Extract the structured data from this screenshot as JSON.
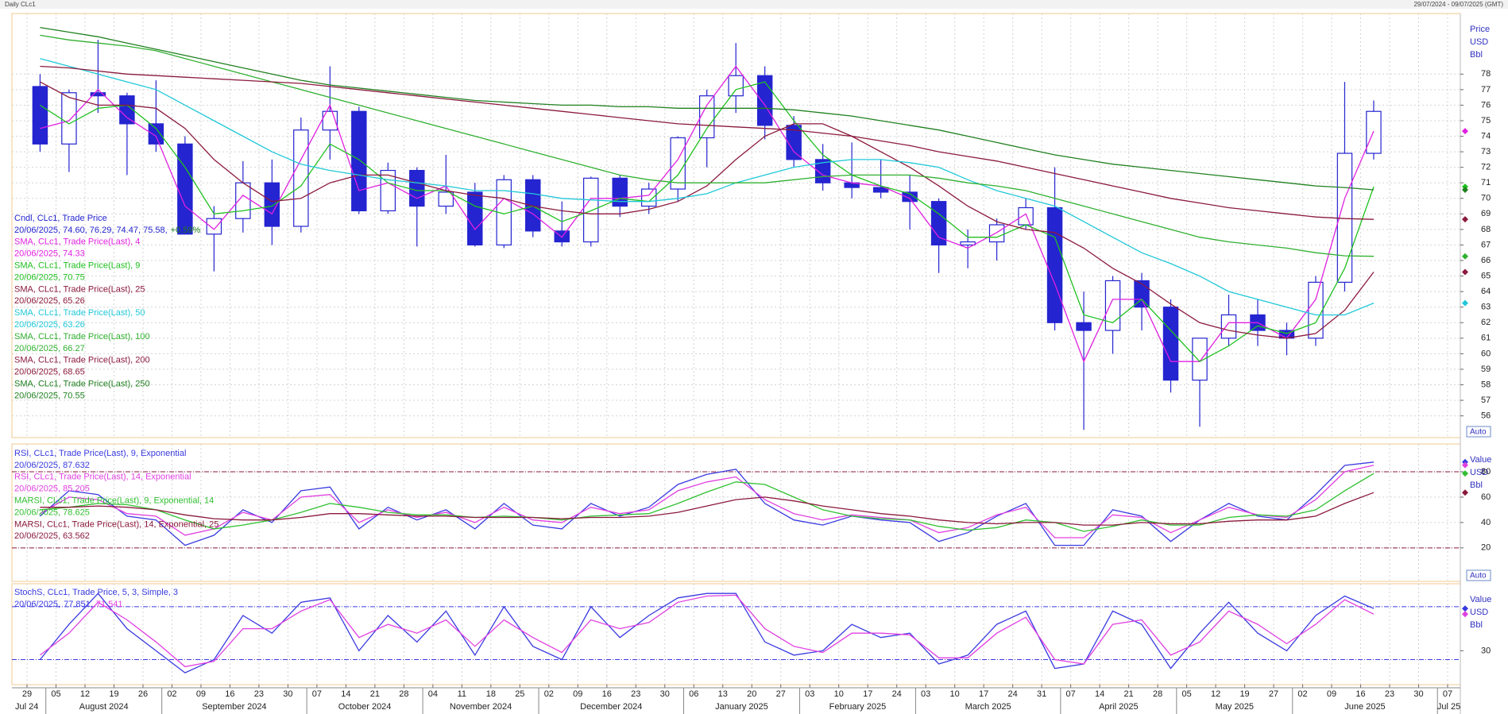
{
  "header": {
    "title": "Daily CLc1",
    "range": "29/07/2024 - 09/07/2025 (GMT)"
  },
  "x_axis": {
    "categories": [
      "29",
      "05",
      "12",
      "19",
      "26",
      "02",
      "09",
      "16",
      "23",
      "30",
      "07",
      "14",
      "21",
      "28",
      "04",
      "11",
      "18",
      "25",
      "02",
      "09",
      "16",
      "23",
      "30",
      "06",
      "13",
      "20",
      "27",
      "03",
      "10",
      "17",
      "24",
      "03",
      "10",
      "17",
      "24",
      "31",
      "07",
      "14",
      "21",
      "28",
      "05",
      "12",
      "19",
      "27",
      "02",
      "09",
      "16",
      "23",
      "30",
      "07"
    ],
    "months": [
      "Jul 24",
      "August 2024",
      "September 2024",
      "October 2024",
      "November 2024",
      "December 2024",
      "January 2025",
      "February 2025",
      "March 2025",
      "April 2025",
      "May 2025",
      "June 2025",
      "Jul 25"
    ]
  },
  "chart_data": [
    {
      "type": "candlestick",
      "units": [
        "Price",
        "USD",
        "Bbl"
      ],
      "scale_mode": "Auto",
      "grid": true,
      "ylim": [
        54.6,
        81.9
      ],
      "yticks": [
        56,
        57,
        58,
        59,
        60,
        61,
        62,
        63,
        64,
        65,
        66,
        67,
        68,
        69,
        70,
        71,
        72,
        73,
        74,
        75,
        76,
        77,
        78
      ],
      "candles": {
        "name": "Cndl, CLc1, Trade Price",
        "legend_value": "20/06/2025, 74.60, 76.29, 74.47, 75.58,",
        "change": "+0.59%",
        "color": "#2424d0",
        "open": [
          77.2,
          73.5,
          76.8,
          76.6,
          74.8,
          73.5,
          67.7,
          68.7,
          71.0,
          68.2,
          74.4,
          75.6,
          69.2,
          71.8,
          69.5,
          70.4,
          67.0,
          71.2,
          67.9,
          67.2,
          71.3,
          69.5,
          70.6,
          73.9,
          76.6,
          77.9,
          74.7,
          72.5,
          71.0,
          70.7,
          70.4,
          69.8,
          67.0,
          67.2,
          68.3,
          69.4,
          62.0,
          61.5,
          64.7,
          63.0,
          58.3,
          61.0,
          62.5,
          61.5,
          61.0,
          64.6,
          72.9,
          null,
          null,
          null
        ],
        "high": [
          78.0,
          77.0,
          80.2,
          76.8,
          77.6,
          74.0,
          69.5,
          72.4,
          72.5,
          75.2,
          78.5,
          75.9,
          72.3,
          72.0,
          72.8,
          71.0,
          71.5,
          71.5,
          69.8,
          71.4,
          71.5,
          71.0,
          74.0,
          77.0,
          80.0,
          78.5,
          75.3,
          73.5,
          73.6,
          72.5,
          71.5,
          70.0,
          68.0,
          68.7,
          70.0,
          72.0,
          64.0,
          65.0,
          65.2,
          63.5,
          61.0,
          63.8,
          63.5,
          62.0,
          65.0,
          77.5,
          76.3,
          null,
          null,
          null
        ],
        "low": [
          73.0,
          71.7,
          75.5,
          71.5,
          73.0,
          67.7,
          65.3,
          67.8,
          67.0,
          67.8,
          72.5,
          69.0,
          69.0,
          66.9,
          69.0,
          66.9,
          66.8,
          67.5,
          66.9,
          66.9,
          68.8,
          69.0,
          69.8,
          72.0,
          75.5,
          73.8,
          72.0,
          70.5,
          70.0,
          70.0,
          68.0,
          65.2,
          65.5,
          66.0,
          68.0,
          61.5,
          55.1,
          60.0,
          61.5,
          57.5,
          55.3,
          60.5,
          60.5,
          59.9,
          60.5,
          64.0,
          72.5,
          null,
          null,
          null
        ],
        "close": [
          73.5,
          76.8,
          76.6,
          74.8,
          73.5,
          67.7,
          68.7,
          71.0,
          68.2,
          74.4,
          75.6,
          69.2,
          71.8,
          69.5,
          70.4,
          67.0,
          71.2,
          67.9,
          67.2,
          71.3,
          69.5,
          70.6,
          73.9,
          76.6,
          77.9,
          74.7,
          72.5,
          71.0,
          70.7,
          70.4,
          69.8,
          67.0,
          67.2,
          68.3,
          69.4,
          62.0,
          61.5,
          64.7,
          63.0,
          58.3,
          61.0,
          62.5,
          61.5,
          61.0,
          64.6,
          72.9,
          75.6,
          null,
          null,
          null
        ]
      },
      "series": [
        {
          "name": "SMA, CLc1, Trade Price(Last),  4",
          "legend_value": "20/06/2025, 74.33",
          "color": "#e020e0",
          "values": [
            74.5,
            75.0,
            77.0,
            75.2,
            74.0,
            69.5,
            68.0,
            70.2,
            69.0,
            72.5,
            76.0,
            70.5,
            71.0,
            70.0,
            70.8,
            68.0,
            70.0,
            69.0,
            67.5,
            70.0,
            70.0,
            70.2,
            72.5,
            76.0,
            78.5,
            76.0,
            73.0,
            71.5,
            71.0,
            70.8,
            70.0,
            67.5,
            66.8,
            67.8,
            69.0,
            64.5,
            59.5,
            63.5,
            63.5,
            59.5,
            59.5,
            62.0,
            62.0,
            61.0,
            63.5,
            70.0,
            74.33,
            null,
            null,
            null
          ]
        },
        {
          "name": "SMA, CLc1, Trade Price(Last),  9",
          "legend_value": "20/06/2025, 70.75",
          "color": "#20c020",
          "values": [
            76.0,
            74.8,
            75.8,
            76.0,
            74.5,
            72.0,
            69.0,
            69.2,
            69.5,
            70.8,
            73.5,
            72.5,
            71.0,
            70.5,
            70.5,
            69.5,
            69.0,
            69.5,
            68.5,
            69.2,
            70.0,
            69.8,
            71.5,
            74.5,
            77.0,
            77.5,
            75.0,
            72.8,
            71.5,
            70.8,
            70.3,
            69.0,
            67.5,
            67.5,
            68.3,
            67.5,
            62.5,
            62.0,
            63.5,
            61.5,
            59.5,
            60.5,
            61.8,
            61.3,
            62.0,
            65.5,
            70.75,
            null,
            null,
            null
          ]
        },
        {
          "name": "SMA, CLc1, Trade Price(Last),  25",
          "legend_value": "20/06/2025, 65.26",
          "color": "#8b1a3c",
          "values": [
            77.5,
            76.5,
            76.0,
            76.0,
            75.8,
            74.5,
            72.5,
            71.0,
            69.8,
            70.0,
            71.0,
            71.5,
            71.5,
            71.0,
            70.5,
            70.2,
            70.0,
            69.5,
            69.2,
            69.0,
            69.0,
            69.3,
            69.8,
            70.8,
            72.5,
            74.0,
            74.8,
            74.8,
            74.0,
            73.0,
            72.0,
            70.8,
            69.5,
            68.5,
            68.0,
            67.8,
            66.8,
            65.5,
            64.5,
            63.2,
            62.0,
            61.5,
            61.2,
            61.0,
            61.3,
            62.8,
            65.26,
            null,
            null,
            null
          ]
        },
        {
          "name": "SMA, CLc1, Trade Price(Last),  50",
          "legend_value": "20/06/2025, 63.26",
          "color": "#20c8d8",
          "values": [
            79.0,
            78.5,
            78.0,
            77.5,
            77.0,
            76.0,
            75.0,
            74.0,
            73.0,
            72.2,
            71.8,
            71.5,
            71.2,
            71.0,
            70.8,
            70.5,
            70.5,
            70.3,
            70.0,
            69.9,
            69.8,
            69.8,
            70.0,
            70.3,
            71.0,
            71.5,
            72.0,
            72.3,
            72.5,
            72.5,
            72.3,
            72.0,
            71.2,
            70.5,
            70.0,
            69.5,
            68.5,
            67.5,
            66.5,
            65.8,
            65.0,
            64.0,
            63.5,
            63.0,
            62.5,
            62.5,
            63.26,
            null,
            null,
            null
          ]
        },
        {
          "name": "SMA, CLc1, Trade Price(Last),  100",
          "legend_value": "20/06/2025, 66.27",
          "color": "#30b030",
          "values": [
            80.5,
            80.2,
            80.0,
            79.8,
            79.5,
            79.0,
            78.5,
            78.0,
            77.5,
            77.0,
            76.5,
            76.0,
            75.5,
            75.0,
            74.5,
            74.0,
            73.5,
            73.0,
            72.5,
            72.0,
            71.5,
            71.2,
            71.0,
            71.0,
            71.0,
            71.0,
            71.2,
            71.4,
            71.5,
            71.5,
            71.5,
            71.3,
            71.0,
            70.8,
            70.5,
            70.0,
            69.5,
            69.0,
            68.5,
            68.0,
            67.5,
            67.2,
            67.0,
            66.8,
            66.5,
            66.3,
            66.27,
            null,
            null,
            null
          ]
        },
        {
          "name": "SMA, CLc1, Trade Price(Last),  200",
          "legend_value": "20/06/2025, 68.65",
          "color": "#8b1a3c",
          "values": [
            78.5,
            78.4,
            78.2,
            78.0,
            77.9,
            77.8,
            77.7,
            77.6,
            77.5,
            77.4,
            77.2,
            77.0,
            76.8,
            76.6,
            76.4,
            76.2,
            76.0,
            75.8,
            75.6,
            75.4,
            75.2,
            75.0,
            74.8,
            74.7,
            74.6,
            74.5,
            74.4,
            74.2,
            74.0,
            73.7,
            73.4,
            73.0,
            72.7,
            72.4,
            72.0,
            71.6,
            71.2,
            70.8,
            70.4,
            70.0,
            69.7,
            69.4,
            69.2,
            69.0,
            68.8,
            68.7,
            68.65,
            null,
            null,
            null
          ]
        },
        {
          "name": "SMA, CLc1, Trade Price(Last),  250",
          "legend_value": "20/06/2025, 70.55",
          "color": "#208020",
          "values": [
            81.0,
            80.7,
            80.4,
            80.0,
            79.6,
            79.2,
            78.8,
            78.4,
            78.0,
            77.6,
            77.3,
            77.1,
            76.9,
            76.7,
            76.5,
            76.3,
            76.2,
            76.1,
            76.0,
            76.0,
            75.9,
            75.9,
            75.8,
            75.8,
            75.8,
            75.8,
            75.7,
            75.5,
            75.3,
            75.0,
            74.7,
            74.4,
            74.0,
            73.6,
            73.2,
            72.8,
            72.5,
            72.2,
            72.0,
            71.8,
            71.6,
            71.4,
            71.2,
            71.0,
            70.8,
            70.7,
            70.55,
            null,
            null,
            null
          ]
        }
      ]
    },
    {
      "type": "line",
      "units": [
        "Value",
        "USD",
        "Bbl"
      ],
      "scale_mode": "Auto",
      "grid": true,
      "ylim": [
        -6.4,
        101.9
      ],
      "yticks": [
        20,
        40,
        60,
        80
      ],
      "levels": [
        20,
        80
      ],
      "level_color": "#8b1a3c",
      "series": [
        {
          "name": "RSI, CLc1, Trade Price(Last),  9, Exponential",
          "legend_value": "20/06/2025, 87.632",
          "color": "#3a3ae0",
          "values": [
            45,
            65,
            62,
            45,
            42,
            22,
            30,
            50,
            40,
            65,
            68,
            35,
            52,
            42,
            50,
            35,
            55,
            38,
            35,
            55,
            45,
            52,
            70,
            78,
            82,
            55,
            42,
            38,
            45,
            42,
            40,
            25,
            32,
            45,
            55,
            22,
            22,
            50,
            45,
            25,
            42,
            55,
            45,
            42,
            62,
            85,
            87.632,
            null,
            null,
            null
          ]
        },
        {
          "name": "RSI, CLc1, Trade Price(Last),  14, Exponential",
          "legend_value": "20/06/2025, 85.205",
          "color": "#e040e0",
          "values": [
            47,
            60,
            58,
            47,
            45,
            30,
            35,
            48,
            42,
            60,
            62,
            40,
            50,
            44,
            48,
            40,
            52,
            42,
            40,
            52,
            47,
            50,
            65,
            72,
            76,
            58,
            47,
            42,
            46,
            44,
            42,
            32,
            36,
            46,
            52,
            28,
            28,
            46,
            44,
            32,
            42,
            52,
            46,
            44,
            58,
            80,
            85.205,
            null,
            null,
            null
          ]
        },
        {
          "name": "MARSI, CLc1, Trade Price(Last),  9, Exponential, 14",
          "legend_value": "20/06/2025, 78.625",
          "color": "#30c030",
          "values": [
            50,
            52,
            55,
            54,
            50,
            42,
            35,
            38,
            42,
            48,
            55,
            52,
            48,
            46,
            46,
            44,
            45,
            44,
            42,
            45,
            46,
            47,
            55,
            64,
            72,
            70,
            60,
            50,
            45,
            43,
            42,
            37,
            34,
            36,
            42,
            40,
            33,
            37,
            42,
            38,
            38,
            44,
            46,
            45,
            50,
            65,
            78.625,
            null,
            null,
            null
          ]
        },
        {
          "name": "MARSI, CLc1, Trade Price(Last),  14, Exponential, 25",
          "legend_value": "20/06/2025, 63.562",
          "color": "#8b1a3c",
          "values": [
            52,
            52,
            53,
            52,
            50,
            46,
            43,
            42,
            42,
            44,
            47,
            47,
            46,
            45,
            45,
            44,
            44,
            44,
            43,
            44,
            44,
            45,
            48,
            53,
            58,
            60,
            57,
            53,
            50,
            47,
            45,
            42,
            40,
            39,
            40,
            40,
            38,
            38,
            40,
            39,
            39,
            41,
            42,
            42,
            45,
            55,
            63.562,
            null,
            null,
            null
          ]
        }
      ]
    },
    {
      "type": "line",
      "units": [
        "Value",
        "USD",
        "Bbl"
      ],
      "grid": false,
      "ylim": [
        -8.4,
        106
      ],
      "yticks": [
        30
      ],
      "levels": [
        20,
        80
      ],
      "level_color": "#3a3ae0",
      "legend_title": "StochS, CLc1, Trade Price,  5, 3, Simple, 3",
      "legend_date": "20/06/2025,",
      "series": [
        {
          "legend_value": "77.851,",
          "color": "#3a3ae0",
          "values": [
            20,
            60,
            95,
            55,
            30,
            5,
            20,
            70,
            50,
            85,
            90,
            30,
            70,
            40,
            75,
            25,
            80,
            35,
            20,
            80,
            45,
            70,
            90,
            95,
            95,
            40,
            25,
            30,
            60,
            45,
            50,
            15,
            25,
            60,
            75,
            10,
            15,
            75,
            60,
            10,
            50,
            85,
            50,
            30,
            70,
            92,
            77.851,
            null,
            null,
            null
          ]
        },
        {
          "legend_value": "71.541",
          "color": "#e040e0",
          "values": [
            25,
            50,
            85,
            65,
            40,
            12,
            18,
            55,
            55,
            75,
            88,
            45,
            60,
            50,
            65,
            35,
            65,
            45,
            28,
            65,
            55,
            62,
            85,
            92,
            93,
            55,
            35,
            28,
            50,
            50,
            48,
            22,
            22,
            50,
            68,
            20,
            15,
            60,
            65,
            25,
            40,
            75,
            60,
            38,
            60,
            88,
            71.541,
            null,
            null,
            null
          ]
        }
      ]
    }
  ]
}
